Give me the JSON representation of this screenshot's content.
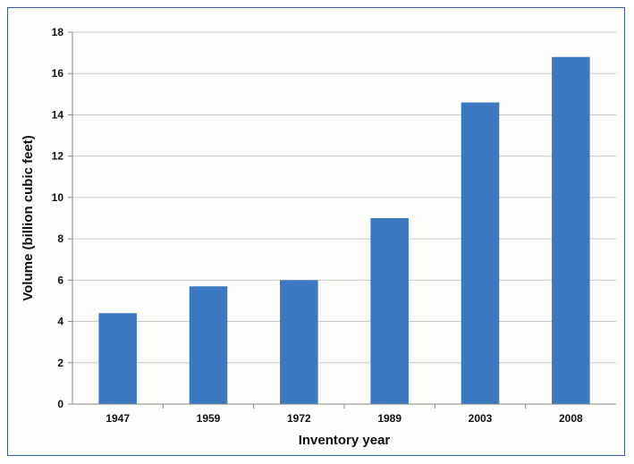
{
  "chart_data": {
    "type": "bar",
    "categories": [
      "1947",
      "1959",
      "1972",
      "1989",
      "2003",
      "2008"
    ],
    "values": [
      4.4,
      5.7,
      6.0,
      9.0,
      14.6,
      16.8
    ],
    "title": "",
    "xlabel": "Inventory year",
    "ylabel": "Volume (billion cubic feet)",
    "ylim": [
      0,
      18
    ],
    "yticks": [
      0,
      2,
      4,
      6,
      8,
      10,
      12,
      14,
      16,
      18
    ],
    "grid": true,
    "legend": "none",
    "colors": {
      "bar": "#3d79c1",
      "grid": "#c8c8c8",
      "axis": "#888888",
      "frame": "#3a5a99"
    }
  }
}
